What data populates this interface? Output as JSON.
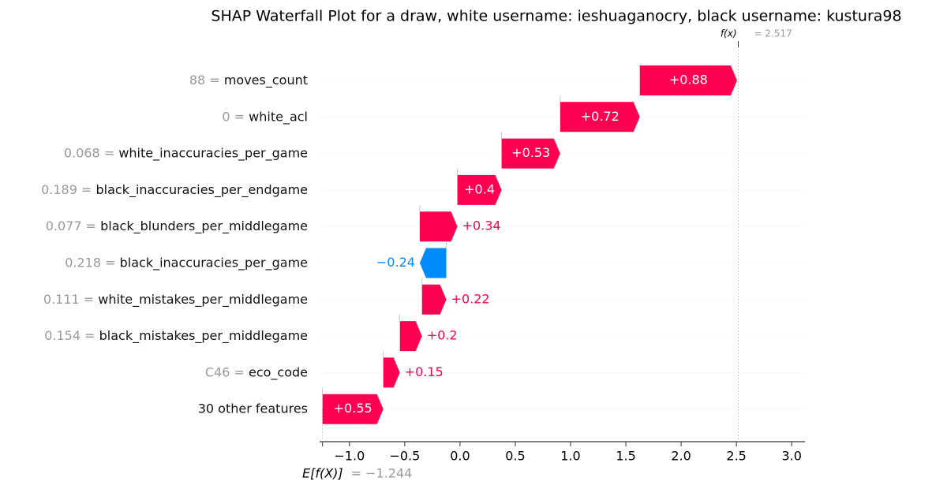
{
  "chart_data": {
    "type": "waterfall",
    "title": "SHAP Waterfall Plot for a draw, white username: ieshuaganocry, black username: kustura98",
    "features": [
      "moves_count",
      "white_acl",
      "white_inaccuracies_per_game",
      "black_inaccuracies_per_endgame",
      "black_blunders_per_middlegame",
      "black_inaccuracies_per_game",
      "white_mistakes_per_middlegame",
      "black_mistakes_per_middlegame",
      "eco_code",
      "30 other features"
    ],
    "feature_values": [
      "88 =",
      "0 =",
      "0.068 =",
      "0.189 =",
      "0.077 =",
      "0.218 =",
      "0.111 =",
      "0.154 =",
      "C46 =",
      null
    ],
    "values": [
      0.88,
      0.72,
      0.53,
      0.4,
      0.34,
      -0.24,
      0.22,
      0.2,
      0.15,
      0.55
    ],
    "value_labels": [
      "+0.88",
      "+0.72",
      "+0.53",
      "+0.4",
      "+0.34",
      "−0.24",
      "+0.22",
      "+0.2",
      "+0.15",
      "+0.55"
    ],
    "base_label": "E[f(X)]",
    "base_value": -1.244,
    "base_value_label": "= −1.244",
    "output_label": "f(x)",
    "output_value": 2.517,
    "output_value_label": "= 2.517",
    "positive_color": "#ff0051",
    "negative_color": "#008bfb",
    "xlim": [
      -1.27,
      3.12
    ],
    "xticks": [
      {
        "value": -1.0,
        "label": "−1.0"
      },
      {
        "value": -0.5,
        "label": "−0.5"
      },
      {
        "value": 0,
        "label": "0.0"
      },
      0.5,
      {
        "value": 1,
        "label": "1.0"
      },
      1.5,
      {
        "value": 2,
        "label": "2.0"
      },
      2.5,
      {
        "value": 3,
        "label": "3.0"
      }
    ]
  }
}
